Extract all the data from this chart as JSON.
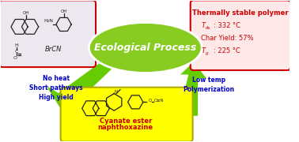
{
  "bg_color": "#ffffff",
  "title": "Ecological Process",
  "title_color": "#ffffff",
  "title_bg": "#88cc22",
  "reactants_box_bg": "#ede8f0",
  "reactants_box_border": "#cc0000",
  "product_box_bg": "#ffff00",
  "polymer_box_bg": "#ffe8e8",
  "polymer_box_border": "#cc0000",
  "arrow_color": "#66cc00",
  "reactants_text": [
    "No heat",
    "Short pathways",
    "High yield"
  ],
  "reactants_text_color": "#0000cc",
  "polymer_title": "Thermally stable polymer",
  "polymer_title_color": "#cc0000",
  "polymer_line1": "T",
  "polymer_line1_sub": "ds",
  "polymer_line1_val": ": 332 °C",
  "polymer_line2": "Char Yield: 57%",
  "polymer_line3": "T",
  "polymer_line3_sub": "g",
  "polymer_line3_val": ": 225 °C",
  "polymer_lines_color": "#cc0000",
  "product_label_line1": "Cyanate ester",
  "product_label_line2": "naphthoxazine",
  "product_label_color": "#cc0000",
  "low_temp_text": [
    "Low temp",
    "Polymerization"
  ],
  "low_temp_color": "#0000cc",
  "struct_color": "#222222"
}
